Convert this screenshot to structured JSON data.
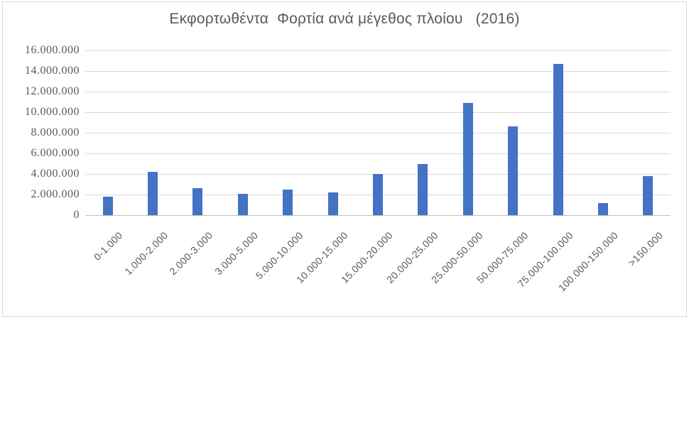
{
  "chart_data": {
    "type": "bar",
    "title": "Εκφορτωθέντα  Φορτία ανά μέγεθος πλοίου   (2016)",
    "xlabel": "",
    "ylabel": "",
    "categories": [
      "0-1.000",
      "1.000-2.000",
      "2.000-3.000",
      "3.000-5.000",
      "5.000-10.000",
      "10.000-15.000",
      "15.000-20.000",
      "20.000-25.000",
      "25.000-50.000",
      "50.000-75.000",
      "75.000-100.000",
      "100.000-150.000",
      ">150.000"
    ],
    "values": [
      1800000,
      4200000,
      2600000,
      2100000,
      2500000,
      2200000,
      4000000,
      5000000,
      10900000,
      8600000,
      14700000,
      1200000,
      3800000
    ],
    "ylim": [
      0,
      16000000
    ],
    "yticks": [
      {
        "value": 0,
        "label": "0"
      },
      {
        "value": 2000000,
        "label": "2.000.000"
      },
      {
        "value": 4000000,
        "label": "4.000.000"
      },
      {
        "value": 6000000,
        "label": "6.000.000"
      },
      {
        "value": 8000000,
        "label": "8.000.000"
      },
      {
        "value": 10000000,
        "label": "10.000.000"
      },
      {
        "value": 12000000,
        "label": "12.000.000"
      },
      {
        "value": 14000000,
        "label": "14.000.000"
      },
      {
        "value": 16000000,
        "label": "16.000.000"
      }
    ],
    "grid": true,
    "legend": false,
    "x_label_rotation_deg": -45,
    "colors": {
      "bar": "#4472c4",
      "gridline": "#d9d9d9",
      "axis_line": "#bfbfbf",
      "tick_label": "#595959",
      "title": "#595959",
      "frame_border": "#d9d9d9",
      "background": "#ffffff"
    }
  }
}
